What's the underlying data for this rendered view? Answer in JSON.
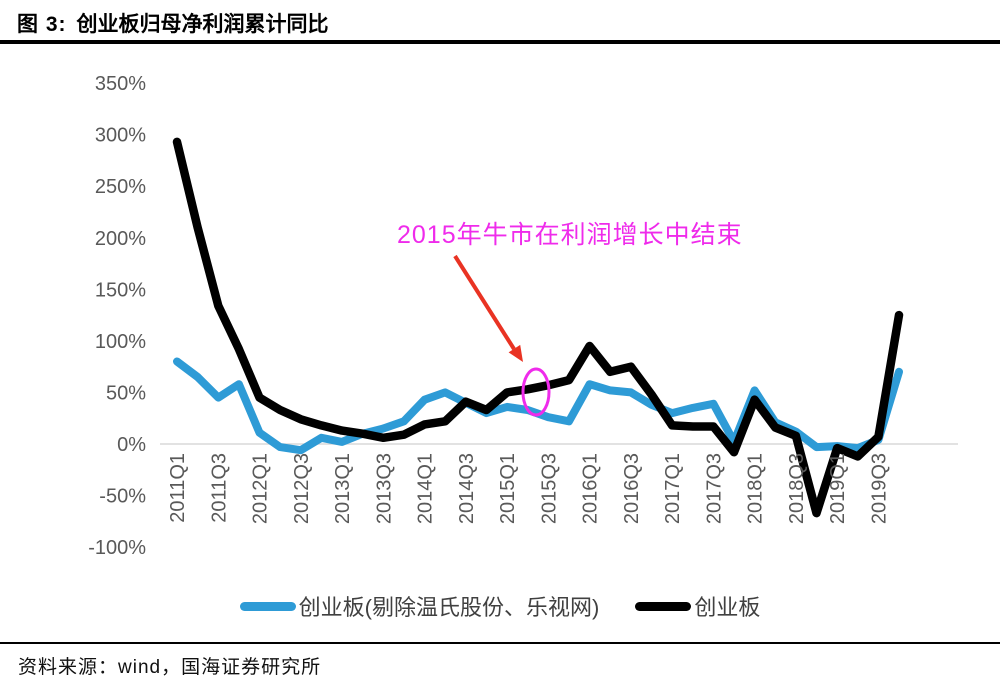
{
  "figure": {
    "caption_label": "图 3:",
    "title": "创业板归母净利润累计同比"
  },
  "annotation": {
    "text": "2015年牛市在利润增长中结束",
    "color": "#EF2BEB",
    "circle_color": "#EF2BEB",
    "arrow_color": "#E93323"
  },
  "footer": {
    "source": "资料来源：wind，国海证券研究所"
  },
  "colors": {
    "axis_label": "#595959",
    "gridline": "#D9D9D9",
    "legend_text": "#404040",
    "series_blue": "#2E9BD6",
    "series_black": "#000000"
  },
  "chart_data": {
    "type": "line",
    "x": [
      "2011Q1",
      "2011Q2",
      "2011Q3",
      "2011Q4",
      "2012Q1",
      "2012Q2",
      "2012Q3",
      "2012Q4",
      "2013Q1",
      "2013Q2",
      "2013Q3",
      "2013Q4",
      "2014Q1",
      "2014Q2",
      "2014Q3",
      "2014Q4",
      "2015Q1",
      "2015Q2",
      "2015Q3",
      "2015Q4",
      "2016Q1",
      "2016Q2",
      "2016Q3",
      "2016Q4",
      "2017Q1",
      "2017Q2",
      "2017Q3",
      "2017Q4",
      "2018Q1",
      "2018Q2",
      "2018Q3",
      "2018Q4",
      "2019Q1",
      "2019Q2",
      "2019Q3",
      "2019Q4"
    ],
    "xtick_every": 2,
    "yticks": [
      350,
      300,
      250,
      200,
      150,
      100,
      50,
      0,
      -50,
      -100
    ],
    "ytick_suffix": "%",
    "ylim": [
      -100,
      350
    ],
    "grid": "zero-line-only",
    "legend_position": "bottom",
    "series": [
      {
        "name": "创业板(剔除温氏股份、乐视网)",
        "color": "#2E9BD6",
        "values": [
          80,
          65,
          45,
          58,
          11,
          -3,
          -6,
          6,
          2,
          10,
          15,
          22,
          43,
          50,
          40,
          30,
          36,
          33,
          26,
          22,
          58,
          52,
          50,
          38,
          30,
          35,
          39,
          2,
          52,
          21,
          12,
          -3,
          -2,
          -4,
          4,
          70
        ]
      },
      {
        "name": "创业板",
        "color": "#000000",
        "values": [
          293,
          210,
          134,
          92,
          45,
          33,
          24,
          18,
          13,
          10,
          6,
          9,
          19,
          22,
          41,
          33,
          50,
          53,
          57,
          62,
          95,
          70,
          75,
          48,
          18,
          17,
          17,
          -8,
          43,
          16,
          8,
          -67,
          -4,
          -12,
          7,
          125
        ]
      }
    ],
    "annotated_point": {
      "x": "2015Q2",
      "series": "创业板",
      "note": "2015年牛市在利润增长中结束"
    }
  }
}
